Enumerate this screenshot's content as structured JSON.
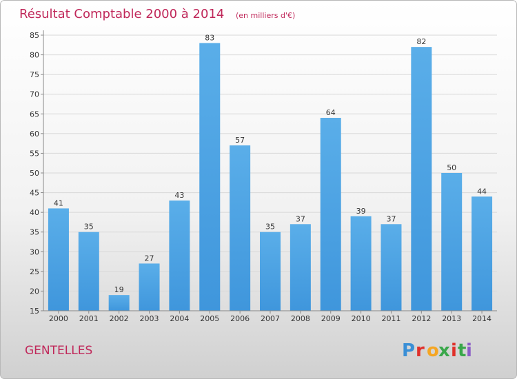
{
  "chart_data": {
    "type": "bar",
    "title": "Résultat Comptable 2000 à 2014",
    "subtitle": "(en milliers d'€)",
    "categories": [
      "2000",
      "2001",
      "2002",
      "2003",
      "2004",
      "2005",
      "2006",
      "2007",
      "2008",
      "2009",
      "2010",
      "2011",
      "2012",
      "2013",
      "2014"
    ],
    "values": [
      41,
      35,
      19,
      27,
      43,
      83,
      57,
      35,
      37,
      64,
      39,
      37,
      82,
      50,
      44
    ],
    "ylim": [
      15,
      85
    ],
    "yticks": [
      15,
      20,
      25,
      30,
      35,
      40,
      45,
      50,
      55,
      60,
      65,
      70,
      75,
      80,
      85
    ],
    "grid": true,
    "xlabel": "",
    "ylabel": "",
    "bar_color": "#3f96dc",
    "bar_color_light": "#5aaee9",
    "title_color": "#c0285a"
  },
  "place_name": "GENTELLES",
  "logo": {
    "letters": [
      "P",
      "r",
      "o",
      "x",
      "i",
      "t",
      "i"
    ],
    "colors": [
      "#3a8fd6",
      "#e0302a",
      "#f5a623",
      "#39a74a",
      "#e0302a",
      "#39a74a",
      "#8b5cc7"
    ]
  }
}
